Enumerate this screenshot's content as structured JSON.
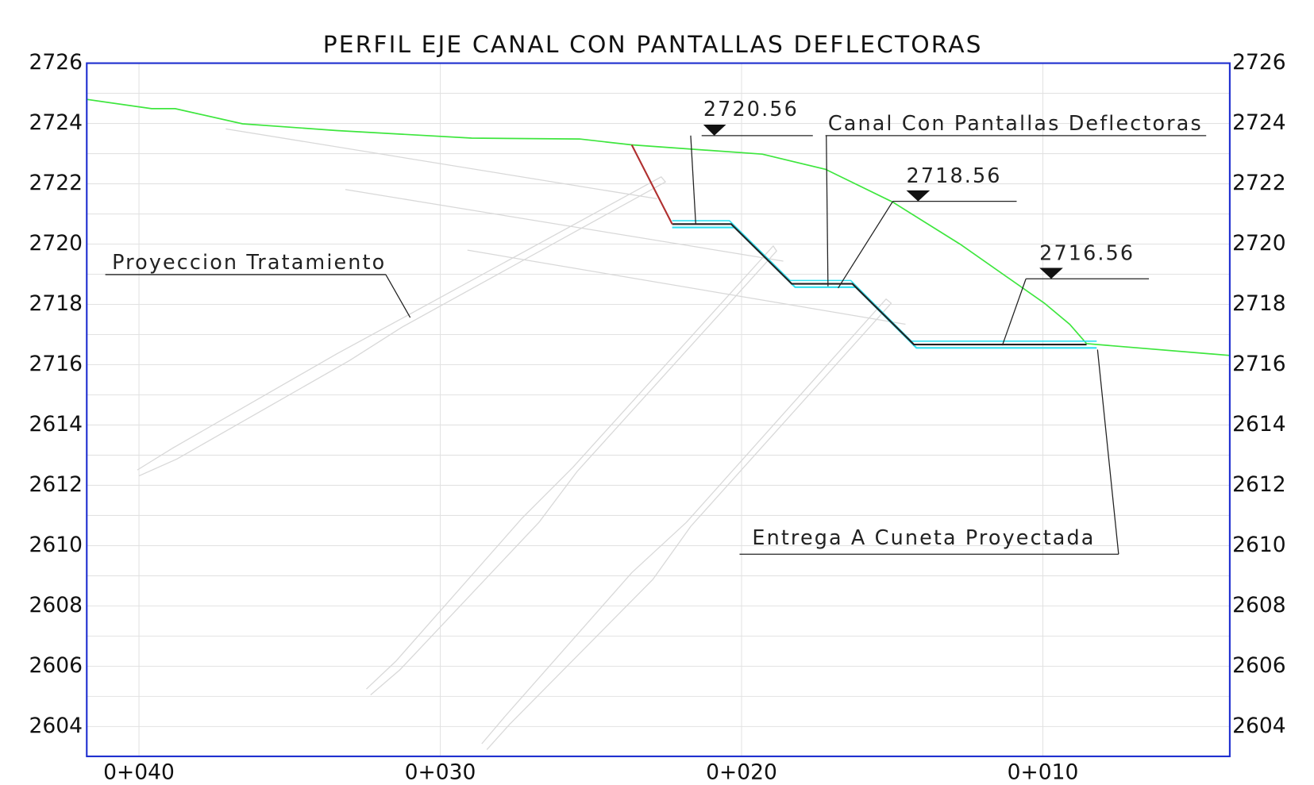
{
  "title": "PERFIL EJE CANAL CON PANTALLAS DEFLECTORAS",
  "y_labels_left": [
    "2726",
    "2724",
    "2722",
    "2720",
    "2718",
    "2716",
    "2614",
    "2612",
    "2610",
    "2608",
    "2606",
    "2604"
  ],
  "y_labels_right": [
    "2726",
    "2724",
    "2722",
    "2720",
    "2718",
    "2716",
    "2614",
    "2612",
    "2610",
    "2608",
    "2606",
    "2604"
  ],
  "x_labels": [
    "0+040",
    "0+030",
    "0+020",
    "0+010"
  ],
  "annotations": [
    "2720.56",
    "Canal Con Pantallas Deflectoras",
    "2718.56",
    "2716.56",
    "Proyeccion Tratamiento",
    "Entrega A Cuneta Proyectada"
  ]
}
